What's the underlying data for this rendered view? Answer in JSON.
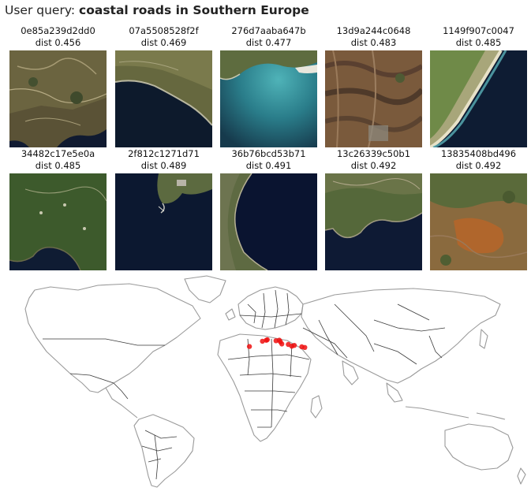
{
  "header": {
    "prefix": "User query: ",
    "query": "coastal roads in Southern Europe"
  },
  "results": [
    {
      "id": "0e85a239d2dd0",
      "dist": "dist 0.456",
      "scene": "hills-coast"
    },
    {
      "id": "07a5508528f2f",
      "dist": "dist 0.469",
      "scene": "peninsula-sea"
    },
    {
      "id": "276d7aaba647b",
      "dist": "dist 0.477",
      "scene": "turquoise-bay"
    },
    {
      "id": "13d9a244c0648",
      "dist": "dist 0.483",
      "scene": "arid-terrain"
    },
    {
      "id": "1149f907c0047",
      "dist": "dist 0.485",
      "scene": "beach-strip"
    },
    {
      "id": "34482c17e5e0a",
      "dist": "dist 0.485",
      "scene": "forest-coast"
    },
    {
      "id": "2f812c1271d71",
      "dist": "dist 0.489",
      "scene": "island-port"
    },
    {
      "id": "36b76bcd53b71",
      "dist": "dist 0.491",
      "scene": "cape-sea"
    },
    {
      "id": "13c26339c50b1",
      "dist": "dist 0.492",
      "scene": "green-coast"
    },
    {
      "id": "13835408bd496",
      "dist": "dist 0.492",
      "scene": "orange-hills"
    }
  ],
  "map": {
    "description_colors": {
      "land_outline": "#9a9a9a",
      "country_border": "#3a3a3a",
      "marker": "#ee1111"
    },
    "markers": [
      {
        "lon": -5.5,
        "lat": 36.2
      },
      {
        "lon": 3.2,
        "lat": 39.6
      },
      {
        "lon": 5.8,
        "lat": 40.2
      },
      {
        "lon": 6.5,
        "lat": 40.6
      },
      {
        "lon": 12.3,
        "lat": 39.9
      },
      {
        "lon": 14.5,
        "lat": 40.3
      },
      {
        "lon": 15.2,
        "lat": 39.2
      },
      {
        "lon": 16.2,
        "lat": 37.8
      },
      {
        "lon": 20.5,
        "lat": 37.5
      },
      {
        "lon": 22.8,
        "lat": 36.4
      },
      {
        "lon": 24.5,
        "lat": 36.9
      },
      {
        "lon": 29.5,
        "lat": 36.0
      },
      {
        "lon": 31.5,
        "lat": 35.6
      }
    ]
  }
}
